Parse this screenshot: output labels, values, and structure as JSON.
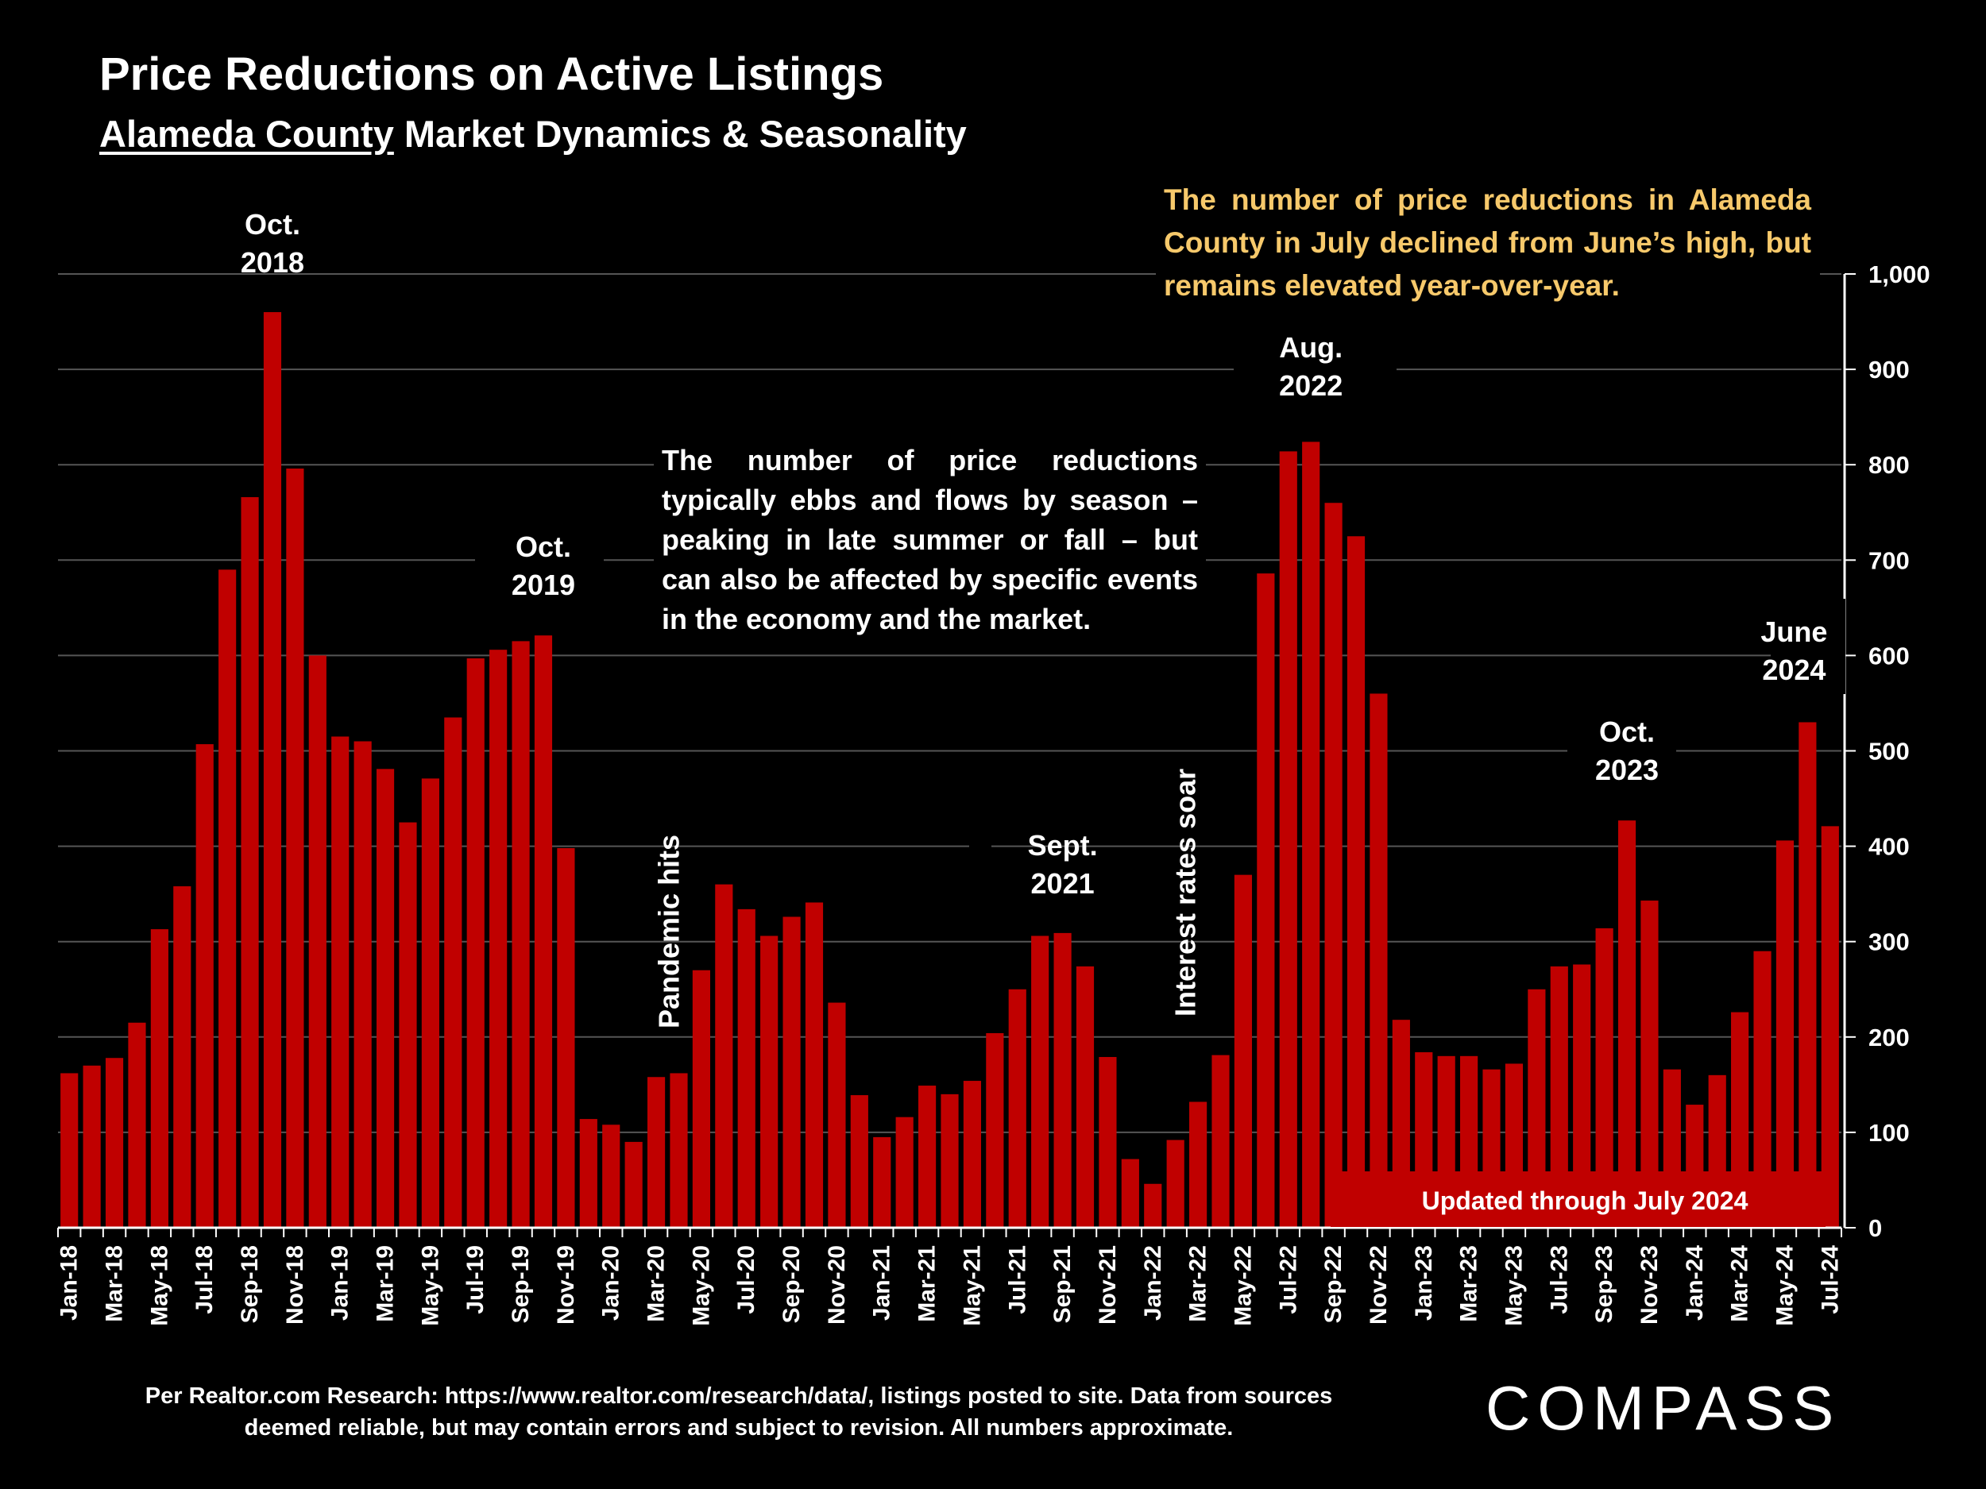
{
  "title": "Price Reductions on Active Listings",
  "subtitle_underlined": "Alameda County",
  "subtitle_rest": " Market Dynamics & Seasonality",
  "callout_yellow": "The number of price reductions in Alameda County in July declined from June’s high, but remains elevated year-over-year.",
  "callout_white": "The number of price reductions typically ebbs and flows by season – peaking in late summer or fall – but can also be affected by specific events in the economy and the market.",
  "footnote": "Per Realtor.com Research:  https://www.realtor.com/research/data/, listings posted to site. Data from sources deemed reliable, but may contain errors and subject to revision. All numbers approximate.",
  "logo": "COMPASS",
  "colors": {
    "bar": "#c00000",
    "background": "#000000",
    "callout_yellow": "#f7c96b",
    "grid": "#555555"
  },
  "chart_data": {
    "type": "bar",
    "title": "Price Reductions on Active Listings",
    "ylim": [
      0,
      1000
    ],
    "yticks": [
      0,
      100,
      200,
      300,
      400,
      500,
      600,
      700,
      800,
      900,
      1000
    ],
    "ytick_labels": [
      "0",
      "100",
      "200",
      "300",
      "400",
      "500",
      "600",
      "700",
      "800",
      "900",
      "1,000"
    ],
    "y_axis_side": "right",
    "grid": true,
    "categories": [
      "Jan-18",
      "Feb-18",
      "Mar-18",
      "Apr-18",
      "May-18",
      "Jun-18",
      "Jul-18",
      "Aug-18",
      "Sep-18",
      "Oct-18",
      "Nov-18",
      "Dec-18",
      "Jan-19",
      "Feb-19",
      "Mar-19",
      "Apr-19",
      "May-19",
      "Jun-19",
      "Jul-19",
      "Aug-19",
      "Sep-19",
      "Oct-19",
      "Nov-19",
      "Dec-19",
      "Jan-20",
      "Feb-20",
      "Mar-20",
      "Apr-20",
      "May-20",
      "Jun-20",
      "Jul-20",
      "Aug-20",
      "Sep-20",
      "Oct-20",
      "Nov-20",
      "Dec-20",
      "Jan-21",
      "Feb-21",
      "Mar-21",
      "Apr-21",
      "May-21",
      "Jun-21",
      "Jul-21",
      "Aug-21",
      "Sep-21",
      "Oct-21",
      "Nov-21",
      "Dec-21",
      "Jan-22",
      "Feb-22",
      "Mar-22",
      "Apr-22",
      "May-22",
      "Jun-22",
      "Jul-22",
      "Aug-22",
      "Sep-22",
      "Oct-22",
      "Nov-22",
      "Dec-22",
      "Jan-23",
      "Feb-23",
      "Mar-23",
      "Apr-23",
      "May-23",
      "Jun-23",
      "Jul-23",
      "Aug-23",
      "Sep-23",
      "Oct-23",
      "Nov-23",
      "Dec-23",
      "Jan-24",
      "Feb-24",
      "Mar-24",
      "Apr-24",
      "May-24",
      "Jun-24",
      "Jul-24"
    ],
    "tick_labels": [
      "Jan-18",
      "",
      "Mar-18",
      "",
      "May-18",
      "",
      "Jul-18",
      "",
      "Sep-18",
      "",
      "Nov-18",
      "",
      "Jan-19",
      "",
      "Mar-19",
      "",
      "May-19",
      "",
      "Jul-19",
      "",
      "Sep-19",
      "",
      "Nov-19",
      "",
      "Jan-20",
      "",
      "Mar-20",
      "",
      "May-20",
      "",
      "Jul-20",
      "",
      "Sep-20",
      "",
      "Nov-20",
      "",
      "Jan-21",
      "",
      "Mar-21",
      "",
      "May-21",
      "",
      "Jul-21",
      "",
      "Sep-21",
      "",
      "Nov-21",
      "",
      "Jan-22",
      "",
      "Mar-22",
      "",
      "May-22",
      "",
      "Jul-22",
      "",
      "Sep-22",
      "",
      "Nov-22",
      "",
      "Jan-23",
      "",
      "Mar-23",
      "",
      "May-23",
      "",
      "Jul-23",
      "",
      "Sep-23",
      "",
      "Nov-23",
      "",
      "Jan-24",
      "",
      "Mar-24",
      "",
      "May-24",
      "",
      "Jul-24"
    ],
    "values": [
      162,
      170,
      178,
      215,
      313,
      358,
      507,
      690,
      766,
      960,
      796,
      600,
      515,
      510,
      481,
      425,
      471,
      535,
      597,
      606,
      615,
      621,
      398,
      114,
      108,
      90,
      158,
      162,
      270,
      360,
      334,
      306,
      326,
      341,
      236,
      139,
      95,
      116,
      149,
      140,
      154,
      204,
      250,
      306,
      309,
      274,
      179,
      72,
      46,
      92,
      132,
      181,
      370,
      686,
      814,
      824,
      760,
      725,
      560,
      218,
      184,
      180,
      180,
      166,
      172,
      250,
      274,
      276,
      314,
      427,
      343,
      166,
      129,
      160,
      226,
      290,
      406,
      530,
      421
    ],
    "annotations": [
      {
        "text": "Oct.\n2018"
      },
      {
        "text": "Oct.\n2019"
      },
      {
        "text": "Pandemic hits"
      },
      {
        "text": "Sept.\n2021"
      },
      {
        "text": "Interest rates soar"
      },
      {
        "text": "Aug.\n2022"
      },
      {
        "text": "Oct.\n2023"
      },
      {
        "text": "June\n2024"
      }
    ],
    "banner": "Updated through July 2024"
  }
}
